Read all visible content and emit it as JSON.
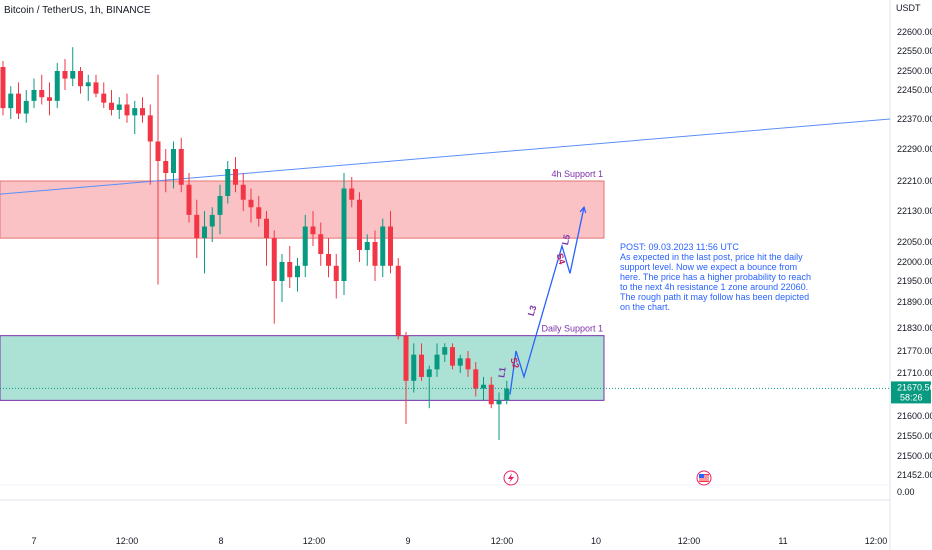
{
  "header": {
    "title": "Bitcoin / TetherUS, 1h, BINANCE",
    "currency": "USDT"
  },
  "colors": {
    "up": "#089981",
    "down": "#f23645",
    "zone_resistance": "#f7a1a6",
    "zone_support": "#7fd1be",
    "trendline": "#5b8ff9",
    "label": "#7b2fa8",
    "note": "#2962ff",
    "price_tag": "#089981"
  },
  "chart_data": {
    "type": "candlestick",
    "symbol": "Bitcoin / TetherUS",
    "timeframe": "1h",
    "exchange": "BINANCE",
    "y_ticks": [
      22600,
      22550,
      22500,
      22450,
      22370,
      22290,
      22210,
      22130,
      22050,
      22000,
      21950,
      21890,
      21830,
      21770,
      21710,
      21600,
      21550,
      21500,
      21452
    ],
    "y_tick_labels": [
      "22600.00",
      "22550.00",
      "22500.00",
      "22450.00",
      "22370.00",
      "22290.00",
      "22210.00",
      "22130.00",
      "22050.00",
      "22000.00",
      "21950.00",
      "21890.00",
      "21830.00",
      "21770.00",
      "21710.00",
      "21600.00",
      "21550.00",
      "21500.00",
      "21452.00"
    ],
    "extra_tick": "0.00",
    "x_labels": [
      "7",
      "12:00",
      "8",
      "12:00",
      "9",
      "12:00",
      "10",
      "12:00",
      "11",
      "12:00"
    ],
    "current_price": {
      "value": 21670.56,
      "label": "21670.56",
      "countdown": "58:26"
    },
    "candles": [
      {
        "o": 22510,
        "h": 22525,
        "l": 22380,
        "c": 22400
      },
      {
        "o": 22400,
        "h": 22460,
        "l": 22370,
        "c": 22440
      },
      {
        "o": 22440,
        "h": 22470,
        "l": 22370,
        "c": 22385
      },
      {
        "o": 22385,
        "h": 22450,
        "l": 22360,
        "c": 22420
      },
      {
        "o": 22420,
        "h": 22480,
        "l": 22400,
        "c": 22450
      },
      {
        "o": 22450,
        "h": 22490,
        "l": 22410,
        "c": 22430
      },
      {
        "o": 22430,
        "h": 22470,
        "l": 22380,
        "c": 22420
      },
      {
        "o": 22420,
        "h": 22520,
        "l": 22400,
        "c": 22500
      },
      {
        "o": 22500,
        "h": 22530,
        "l": 22450,
        "c": 22480
      },
      {
        "o": 22480,
        "h": 22560,
        "l": 22460,
        "c": 22500
      },
      {
        "o": 22500,
        "h": 22510,
        "l": 22440,
        "c": 22460
      },
      {
        "o": 22460,
        "h": 22490,
        "l": 22420,
        "c": 22470
      },
      {
        "o": 22470,
        "h": 22490,
        "l": 22430,
        "c": 22440
      },
      {
        "o": 22440,
        "h": 22470,
        "l": 22400,
        "c": 22415
      },
      {
        "o": 22415,
        "h": 22450,
        "l": 22380,
        "c": 22395
      },
      {
        "o": 22395,
        "h": 22430,
        "l": 22370,
        "c": 22410
      },
      {
        "o": 22410,
        "h": 22440,
        "l": 22360,
        "c": 22380
      },
      {
        "o": 22380,
        "h": 22420,
        "l": 22330,
        "c": 22400
      },
      {
        "o": 22400,
        "h": 22430,
        "l": 22360,
        "c": 22380
      },
      {
        "o": 22380,
        "h": 22410,
        "l": 22200,
        "c": 22310
      },
      {
        "o": 22310,
        "h": 22490,
        "l": 21940,
        "c": 22260
      },
      {
        "o": 22260,
        "h": 22290,
        "l": 22180,
        "c": 22230
      },
      {
        "o": 22230,
        "h": 22310,
        "l": 22190,
        "c": 22290
      },
      {
        "o": 22290,
        "h": 22320,
        "l": 22180,
        "c": 22200
      },
      {
        "o": 22200,
        "h": 22230,
        "l": 22100,
        "c": 22120
      },
      {
        "o": 22120,
        "h": 22160,
        "l": 22010,
        "c": 22060
      },
      {
        "o": 22060,
        "h": 22130,
        "l": 21970,
        "c": 22090
      },
      {
        "o": 22090,
        "h": 22140,
        "l": 22050,
        "c": 22120
      },
      {
        "o": 22120,
        "h": 22200,
        "l": 22070,
        "c": 22170
      },
      {
        "o": 22170,
        "h": 22260,
        "l": 22150,
        "c": 22240
      },
      {
        "o": 22240,
        "h": 22270,
        "l": 22180,
        "c": 22200
      },
      {
        "o": 22200,
        "h": 22230,
        "l": 22130,
        "c": 22160
      },
      {
        "o": 22160,
        "h": 22190,
        "l": 22100,
        "c": 22140
      },
      {
        "o": 22140,
        "h": 22170,
        "l": 22090,
        "c": 22110
      },
      {
        "o": 22110,
        "h": 22130,
        "l": 21990,
        "c": 22060
      },
      {
        "o": 22060,
        "h": 22080,
        "l": 21840,
        "c": 21950
      },
      {
        "o": 21950,
        "h": 22020,
        "l": 21890,
        "c": 22000
      },
      {
        "o": 22000,
        "h": 22040,
        "l": 21930,
        "c": 21960
      },
      {
        "o": 21960,
        "h": 22010,
        "l": 21920,
        "c": 21990
      },
      {
        "o": 21990,
        "h": 22120,
        "l": 21960,
        "c": 22090
      },
      {
        "o": 22090,
        "h": 22130,
        "l": 22040,
        "c": 22070
      },
      {
        "o": 22070,
        "h": 22100,
        "l": 21990,
        "c": 22020
      },
      {
        "o": 22020,
        "h": 22060,
        "l": 21960,
        "c": 21990
      },
      {
        "o": 21990,
        "h": 22020,
        "l": 21900,
        "c": 21950
      },
      {
        "o": 21950,
        "h": 22230,
        "l": 21910,
        "c": 22190
      },
      {
        "o": 22190,
        "h": 22220,
        "l": 22140,
        "c": 22160
      },
      {
        "o": 22160,
        "h": 22180,
        "l": 22000,
        "c": 22030
      },
      {
        "o": 22030,
        "h": 22070,
        "l": 21990,
        "c": 22050
      },
      {
        "o": 22050,
        "h": 22080,
        "l": 21950,
        "c": 21990
      },
      {
        "o": 21990,
        "h": 22110,
        "l": 21960,
        "c": 22090
      },
      {
        "o": 22090,
        "h": 22130,
        "l": 21970,
        "c": 21990
      },
      {
        "o": 21990,
        "h": 22010,
        "l": 21800,
        "c": 21810
      },
      {
        "o": 21810,
        "h": 21820,
        "l": 21580,
        "c": 21690
      },
      {
        "o": 21690,
        "h": 21790,
        "l": 21660,
        "c": 21760
      },
      {
        "o": 21760,
        "h": 21790,
        "l": 21690,
        "c": 21700
      },
      {
        "o": 21700,
        "h": 21730,
        "l": 21620,
        "c": 21720
      },
      {
        "o": 21720,
        "h": 21790,
        "l": 21700,
        "c": 21760
      },
      {
        "o": 21760,
        "h": 21790,
        "l": 21740,
        "c": 21780
      },
      {
        "o": 21780,
        "h": 21790,
        "l": 21720,
        "c": 21730
      },
      {
        "o": 21730,
        "h": 21760,
        "l": 21710,
        "c": 21750
      },
      {
        "o": 21750,
        "h": 21770,
        "l": 21700,
        "c": 21720
      },
      {
        "o": 21720,
        "h": 21740,
        "l": 21650,
        "c": 21670
      },
      {
        "o": 21670,
        "h": 21700,
        "l": 21640,
        "c": 21680
      },
      {
        "o": 21680,
        "h": 21700,
        "l": 21620,
        "c": 21630
      },
      {
        "o": 21630,
        "h": 21660,
        "l": 21540,
        "c": 21640
      },
      {
        "o": 21640,
        "h": 21690,
        "l": 21630,
        "c": 21670
      }
    ],
    "zones": [
      {
        "name": "4h Support 1",
        "top": 22210,
        "bottom": 22060
      },
      {
        "name": "Daily Support 1",
        "top": 21810,
        "bottom": 21640
      }
    ],
    "trendline": {
      "from_value": 22175,
      "to_value": 22370
    },
    "projection": {
      "points": [
        {
          "label": "L1",
          "value": 21655
        },
        {
          "label": "S2",
          "value": 21770
        },
        {
          "label": "L3",
          "value": 21700
        },
        {
          "label": "S4",
          "value": 22040
        },
        {
          "label": "L5",
          "value": 21970
        },
        {
          "label": "",
          "value": 22140
        }
      ]
    },
    "annotation": [
      "POST: 09.03.2023 11:56 UTC",
      "As expected in the last post, price hit the daily",
      "support level. Now we expect a bounce from",
      "here. The price has a higher probability to reach",
      "to the next 4h resistance 1 zone around 22060.",
      "The rough path it may follow has been depicted",
      "on the chart."
    ]
  }
}
